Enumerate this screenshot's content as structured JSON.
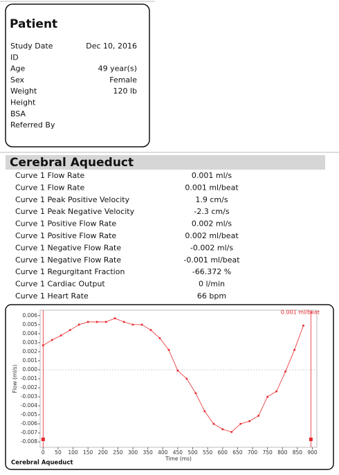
{
  "patient": {
    "title": "Patient",
    "rows": [
      {
        "label": "Study Date",
        "value": "Dec 10, 2016"
      },
      {
        "label": "ID"
      },
      {
        "label": "Age",
        "value": "49 year(s)"
      },
      {
        "label": "Sex",
        "value": "Female"
      },
      {
        "label": "Weight",
        "value": "120 lb"
      },
      {
        "label": "Height"
      },
      {
        "label": "BSA"
      },
      {
        "label": "Referred By"
      }
    ]
  },
  "section": {
    "title": "Cerebral Aqueduct",
    "rows": [
      {
        "label": "Curve 1 Flow Rate",
        "value": "0.001 ml/s"
      },
      {
        "label": "Curve 1 Flow Rate",
        "value": "0.001 ml/beat"
      },
      {
        "label": "Curve 1 Peak Positive Velocity",
        "value": "1.9 cm/s"
      },
      {
        "label": "Curve 1 Peak Negative Velocity",
        "value": "-2.3 cm/s"
      },
      {
        "label": "Curve 1 Positive Flow Rate",
        "value": "0.002 ml/s"
      },
      {
        "label": "Curve 1 Positive Flow Rate",
        "value": "0.002 ml/beat"
      },
      {
        "label": "Curve 1 Negative Flow Rate",
        "value": "-0.002 ml/s"
      },
      {
        "label": "Curve 1 Negative Flow Rate",
        "value": "-0.001 ml/beat"
      },
      {
        "label": "Curve 1 Regurgitant Fraction",
        "value": "-66.372 %"
      },
      {
        "label": "Curve 1 Cardiac Output",
        "value": "0 l/min"
      },
      {
        "label": "Curve 1 Heart Rate",
        "value": "66 bpm"
      }
    ]
  },
  "chart_data": {
    "type": "line",
    "caption": "Cerebral Aqueduct",
    "annotation": "0.001 ml/beat",
    "x_label": "Time (ms)",
    "y_label": "Flow (ml/s)",
    "x": [
      0,
      30,
      60,
      90,
      120,
      150,
      180,
      210,
      240,
      270,
      300,
      330,
      360,
      390,
      420,
      450,
      480,
      510,
      540,
      570,
      600,
      630,
      660,
      690,
      720,
      750,
      780,
      810,
      840,
      870
    ],
    "series": [
      {
        "color": "#e8262b",
        "values": [
          0.0027,
          0.0033,
          0.0038,
          0.0044,
          0.005,
          0.0053,
          0.0053,
          0.0053,
          0.0057,
          0.0053,
          0.005,
          0.005,
          0.0044,
          0.0035,
          0.0022,
          -0.0001,
          -0.001,
          -0.0026,
          -0.0046,
          -0.006,
          -0.0066,
          -0.0069,
          -0.006,
          -0.0057,
          -0.0051,
          -0.003,
          -0.0024,
          -0.0002,
          0.0022,
          0.0049
        ]
      }
    ],
    "cursors": [
      0,
      895
    ],
    "xlim": [
      -10,
      915
    ],
    "ylim": [
      -0.0086,
      0.0066
    ],
    "xticks": [
      0,
      50,
      100,
      150,
      200,
      250,
      300,
      350,
      400,
      450,
      500,
      550,
      600,
      650,
      700,
      750,
      800,
      850,
      900
    ],
    "yticks": [
      0.006,
      0.005,
      0.004,
      0.003,
      0.002,
      0.001,
      {
        "value": 0,
        "label": "0.000"
      },
      -0.001,
      -0.002,
      -0.003,
      -0.004,
      -0.005,
      -0.006,
      -0.007,
      -0.008
    ]
  }
}
